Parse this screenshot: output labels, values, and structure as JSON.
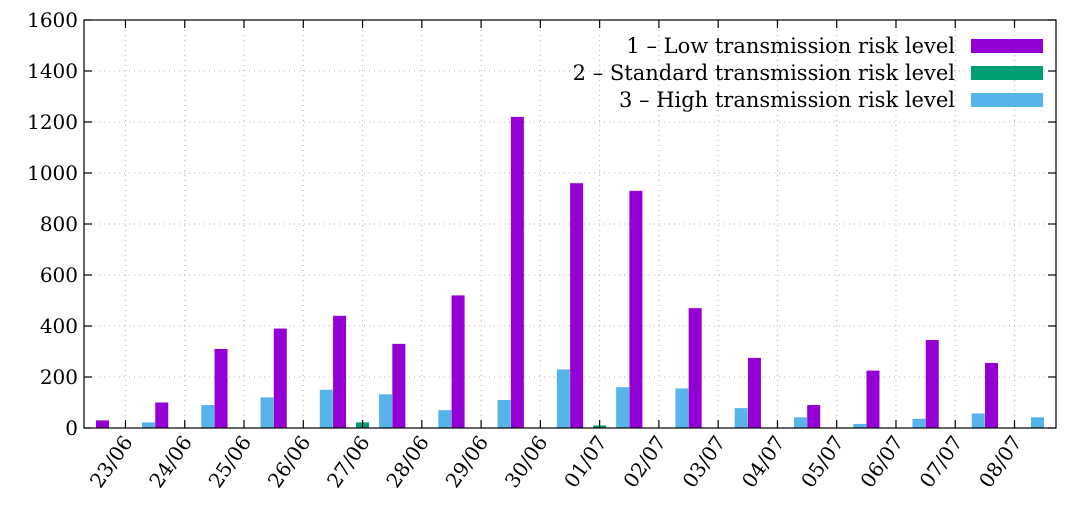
{
  "chart_data": {
    "type": "bar",
    "title": "",
    "xlabel": "",
    "ylabel": "",
    "ylim": [
      0,
      1600
    ],
    "yticks": [
      0,
      200,
      400,
      600,
      800,
      1000,
      1200,
      1400,
      1600
    ],
    "grid": true,
    "legend_position": "top-right",
    "categories": [
      "23/06",
      "24/06",
      "25/06",
      "26/06",
      "27/06",
      "28/06",
      "29/06",
      "30/06",
      "01/07",
      "02/07",
      "03/07",
      "04/07",
      "05/07",
      "06/07",
      "07/07",
      "08/07"
    ],
    "series": [
      {
        "name": "1 – Low transmission risk level",
        "color": "#9400d3",
        "values": [
          30,
          100,
          310,
          390,
          440,
          330,
          520,
          1220,
          960,
          930,
          470,
          275,
          90,
          225,
          345,
          255
        ]
      },
      {
        "name": "2 – Standard transmission risk level",
        "color": "#009e73",
        "values": [
          0,
          0,
          0,
          0,
          22,
          0,
          0,
          0,
          10,
          0,
          0,
          0,
          0,
          0,
          0,
          0
        ]
      },
      {
        "name": "3 – High transmission risk level",
        "color": "#56b4e9",
        "values": [
          22,
          90,
          120,
          150,
          132,
          70,
          110,
          230,
          160,
          155,
          78,
          42,
          16,
          36,
          57,
          42
        ]
      }
    ]
  }
}
